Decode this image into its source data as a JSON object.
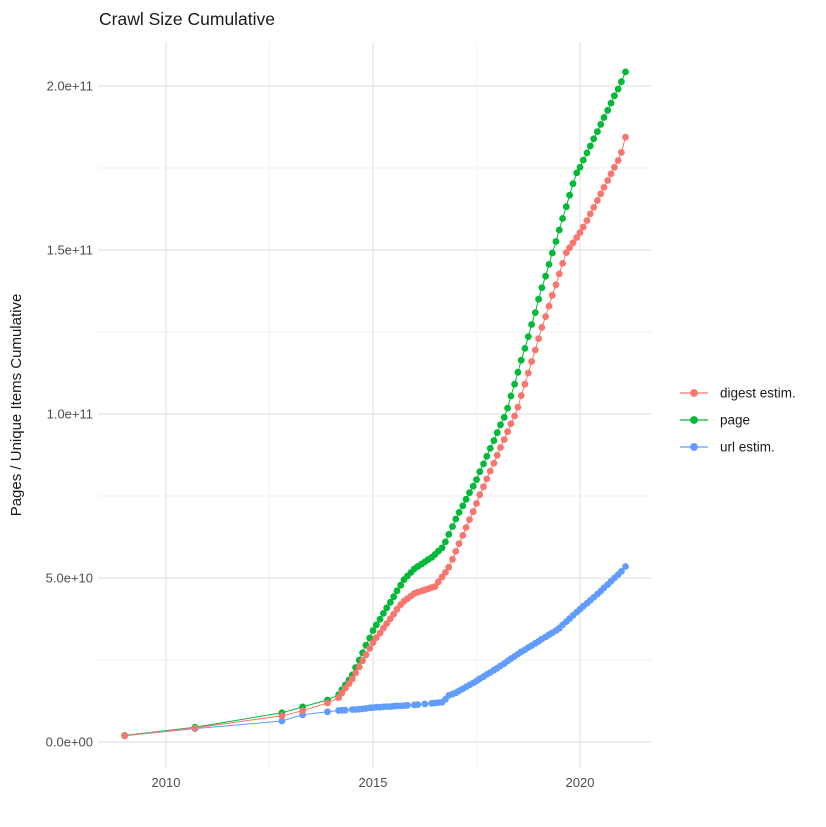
{
  "title": "Crawl Size Cumulative",
  "ylabel": "Pages / Unique Items Cumulative",
  "colors": {
    "digest": "#F8766D",
    "page": "#00BA38",
    "url": "#619CFF",
    "grid_major": "#E4E4E4",
    "grid_minor": "#F2F2F2",
    "tick_text": "#4d4d4d",
    "title_text": "#1a1a1a",
    "background": "#ffffff"
  },
  "chart_data": {
    "type": "line",
    "title": "Crawl Size Cumulative",
    "xlabel": "",
    "ylabel": "Pages / Unique Items Cumulative",
    "value_unit": "1e9 (values below are billions of pages / unique items)",
    "grid": true,
    "legend_position": "right",
    "xlim": [
      2008.4,
      2021.7
    ],
    "ylim_e9": [
      -8,
      213
    ],
    "x_ticks": [
      {
        "label": "2010",
        "year": 2010
      },
      {
        "label": "2015",
        "year": 2015
      },
      {
        "label": "2020",
        "year": 2020
      }
    ],
    "y_ticks": [
      {
        "label": "0.0e+00",
        "value": 0
      },
      {
        "label": "5.0e+10",
        "value": 50
      },
      {
        "label": "1.0e+11",
        "value": 100
      },
      {
        "label": "1.5e+11",
        "value": 150
      },
      {
        "label": "2.0e+11",
        "value": 200
      }
    ],
    "x_minor": [
      2012.5,
      2017.5
    ],
    "y_minor": [
      25,
      75,
      125,
      175
    ],
    "series": [
      {
        "name": "digest estim.",
        "color": "#F8766D",
        "points": [
          [
            2009.0,
            1.9
          ],
          [
            2010.7,
            4.3
          ],
          [
            2012.8,
            8.0
          ],
          [
            2013.3,
            9.5
          ],
          [
            2013.9,
            11.9
          ],
          [
            2014.17,
            13.5
          ],
          [
            2014.25,
            14.9
          ],
          [
            2014.33,
            16.4
          ],
          [
            2014.42,
            17.8
          ],
          [
            2014.5,
            19.2
          ],
          [
            2014.58,
            21.1
          ],
          [
            2014.67,
            22.9
          ],
          [
            2014.75,
            24.8
          ],
          [
            2014.83,
            26.6
          ],
          [
            2014.92,
            28.5
          ],
          [
            2015.0,
            30.3
          ],
          [
            2015.08,
            31.8
          ],
          [
            2015.17,
            33.2
          ],
          [
            2015.25,
            34.7
          ],
          [
            2015.33,
            36.1
          ],
          [
            2015.42,
            37.6
          ],
          [
            2015.5,
            39.0
          ],
          [
            2015.58,
            40.5
          ],
          [
            2015.67,
            41.9
          ],
          [
            2015.75,
            42.9
          ],
          [
            2015.83,
            43.7
          ],
          [
            2015.92,
            44.5
          ],
          [
            2016.0,
            45.3
          ],
          [
            2016.08,
            45.7
          ],
          [
            2016.17,
            46.0
          ],
          [
            2016.25,
            46.4
          ],
          [
            2016.33,
            46.7
          ],
          [
            2016.42,
            47.1
          ],
          [
            2016.5,
            47.4
          ],
          [
            2016.58,
            48.8
          ],
          [
            2016.67,
            50.3
          ],
          [
            2016.75,
            51.7
          ],
          [
            2016.83,
            53.3
          ],
          [
            2016.92,
            55.7
          ],
          [
            2017.0,
            58.1
          ],
          [
            2017.08,
            60.5
          ],
          [
            2017.17,
            63.0
          ],
          [
            2017.25,
            65.4
          ],
          [
            2017.33,
            67.8
          ],
          [
            2017.42,
            70.2
          ],
          [
            2017.5,
            72.7
          ],
          [
            2017.58,
            75.4
          ],
          [
            2017.67,
            77.8
          ],
          [
            2017.75,
            80.2
          ],
          [
            2017.83,
            82.6
          ],
          [
            2017.92,
            85.0
          ],
          [
            2018.0,
            87.4
          ],
          [
            2018.08,
            89.8
          ],
          [
            2018.17,
            92.2
          ],
          [
            2018.25,
            94.6
          ],
          [
            2018.33,
            97.0
          ],
          [
            2018.42,
            99.4
          ],
          [
            2018.5,
            102.1
          ],
          [
            2018.58,
            105.6
          ],
          [
            2018.67,
            109.1
          ],
          [
            2018.75,
            112.5
          ],
          [
            2018.83,
            116.0
          ],
          [
            2018.92,
            119.5
          ],
          [
            2019.0,
            123.0
          ],
          [
            2019.08,
            126.4
          ],
          [
            2019.17,
            129.7
          ],
          [
            2019.25,
            132.9
          ],
          [
            2019.33,
            136.2
          ],
          [
            2019.42,
            139.4
          ],
          [
            2019.5,
            142.7
          ],
          [
            2019.58,
            145.9
          ],
          [
            2019.67,
            149.2
          ],
          [
            2019.75,
            150.7
          ],
          [
            2019.83,
            152.2
          ],
          [
            2019.92,
            153.8
          ],
          [
            2020.0,
            155.3
          ],
          [
            2020.08,
            157.0
          ],
          [
            2020.17,
            159.0
          ],
          [
            2020.25,
            161.0
          ],
          [
            2020.33,
            163.0
          ],
          [
            2020.42,
            165.1
          ],
          [
            2020.5,
            167.1
          ],
          [
            2020.58,
            169.1
          ],
          [
            2020.67,
            171.2
          ],
          [
            2020.75,
            173.2
          ],
          [
            2020.83,
            175.2
          ],
          [
            2020.92,
            177.3
          ],
          [
            2021.0,
            179.8
          ],
          [
            2021.1,
            184.4
          ]
        ]
      },
      {
        "name": "page",
        "color": "#00BA38",
        "points": [
          [
            2009.0,
            2.0
          ],
          [
            2010.7,
            4.5
          ],
          [
            2012.8,
            8.9
          ],
          [
            2013.3,
            10.7
          ],
          [
            2013.9,
            12.8
          ],
          [
            2014.17,
            14.4
          ],
          [
            2014.25,
            15.9
          ],
          [
            2014.33,
            17.4
          ],
          [
            2014.42,
            18.9
          ],
          [
            2014.5,
            20.5
          ],
          [
            2014.58,
            22.7
          ],
          [
            2014.67,
            25.0
          ],
          [
            2014.75,
            27.2
          ],
          [
            2014.83,
            29.5
          ],
          [
            2014.92,
            31.7
          ],
          [
            2015.0,
            34.0
          ],
          [
            2015.08,
            35.7
          ],
          [
            2015.17,
            37.4
          ],
          [
            2015.25,
            39.2
          ],
          [
            2015.33,
            40.9
          ],
          [
            2015.42,
            42.6
          ],
          [
            2015.5,
            44.3
          ],
          [
            2015.58,
            46.1
          ],
          [
            2015.67,
            47.8
          ],
          [
            2015.75,
            49.5
          ],
          [
            2015.83,
            50.6
          ],
          [
            2015.92,
            51.7
          ],
          [
            2016.0,
            52.8
          ],
          [
            2016.08,
            53.5
          ],
          [
            2016.17,
            54.2
          ],
          [
            2016.25,
            54.9
          ],
          [
            2016.33,
            55.6
          ],
          [
            2016.42,
            56.3
          ],
          [
            2016.5,
            57.2
          ],
          [
            2016.58,
            58.2
          ],
          [
            2016.67,
            59.2
          ],
          [
            2016.75,
            61.0
          ],
          [
            2016.83,
            63.3
          ],
          [
            2016.92,
            65.7
          ],
          [
            2017.0,
            68.0
          ],
          [
            2017.08,
            70.0
          ],
          [
            2017.17,
            72.0
          ],
          [
            2017.25,
            74.0
          ],
          [
            2017.33,
            76.0
          ],
          [
            2017.42,
            78.0
          ],
          [
            2017.5,
            80.0
          ],
          [
            2017.58,
            82.4
          ],
          [
            2017.67,
            84.8
          ],
          [
            2017.75,
            87.1
          ],
          [
            2017.83,
            89.5
          ],
          [
            2017.92,
            91.9
          ],
          [
            2018.0,
            94.3
          ],
          [
            2018.08,
            96.7
          ],
          [
            2018.17,
            99.0
          ],
          [
            2018.25,
            101.8
          ],
          [
            2018.33,
            105.5
          ],
          [
            2018.42,
            109.1
          ],
          [
            2018.5,
            112.7
          ],
          [
            2018.58,
            116.4
          ],
          [
            2018.67,
            120.0
          ],
          [
            2018.75,
            123.6
          ],
          [
            2018.83,
            127.3
          ],
          [
            2018.92,
            130.9
          ],
          [
            2019.0,
            135.0
          ],
          [
            2019.08,
            138.5
          ],
          [
            2019.17,
            142.0
          ],
          [
            2019.25,
            145.6
          ],
          [
            2019.33,
            149.1
          ],
          [
            2019.42,
            152.6
          ],
          [
            2019.5,
            156.1
          ],
          [
            2019.58,
            159.6
          ],
          [
            2019.67,
            163.2
          ],
          [
            2019.75,
            166.7
          ],
          [
            2019.83,
            170.2
          ],
          [
            2019.92,
            173.5
          ],
          [
            2020.0,
            175.2
          ],
          [
            2020.08,
            177.4
          ],
          [
            2020.17,
            179.6
          ],
          [
            2020.25,
            181.7
          ],
          [
            2020.33,
            183.9
          ],
          [
            2020.42,
            186.1
          ],
          [
            2020.5,
            188.3
          ],
          [
            2020.58,
            190.4
          ],
          [
            2020.67,
            192.6
          ],
          [
            2020.75,
            194.8
          ],
          [
            2020.83,
            197.0
          ],
          [
            2020.92,
            199.1
          ],
          [
            2021.0,
            201.3
          ],
          [
            2021.1,
            204.3
          ]
        ]
      },
      {
        "name": "url estim.",
        "color": "#619CFF",
        "points": [
          [
            2009.0,
            1.9
          ],
          [
            2010.7,
            4.1
          ],
          [
            2012.8,
            6.4
          ],
          [
            2013.3,
            8.3
          ],
          [
            2013.9,
            9.2
          ],
          [
            2014.17,
            9.6
          ],
          [
            2014.25,
            9.7
          ],
          [
            2014.33,
            9.7
          ],
          [
            2014.5,
            9.9
          ],
          [
            2014.58,
            9.9
          ],
          [
            2014.67,
            10.0
          ],
          [
            2014.75,
            10.1
          ],
          [
            2014.83,
            10.2
          ],
          [
            2014.92,
            10.4
          ],
          [
            2015.0,
            10.5
          ],
          [
            2015.08,
            10.6
          ],
          [
            2015.17,
            10.6
          ],
          [
            2015.25,
            10.7
          ],
          [
            2015.33,
            10.8
          ],
          [
            2015.42,
            10.8
          ],
          [
            2015.5,
            10.9
          ],
          [
            2015.58,
            11.0
          ],
          [
            2015.67,
            11.0
          ],
          [
            2015.75,
            11.1
          ],
          [
            2015.83,
            11.2
          ],
          [
            2016.0,
            11.3
          ],
          [
            2016.08,
            11.4
          ],
          [
            2016.25,
            11.6
          ],
          [
            2016.42,
            11.8
          ],
          [
            2016.5,
            11.9
          ],
          [
            2016.58,
            12.0
          ],
          [
            2016.67,
            12.1
          ],
          [
            2016.75,
            13.0
          ],
          [
            2016.83,
            14.2
          ],
          [
            2016.92,
            14.6
          ],
          [
            2017.0,
            15.0
          ],
          [
            2017.08,
            15.6
          ],
          [
            2017.17,
            16.2
          ],
          [
            2017.25,
            16.8
          ],
          [
            2017.33,
            17.4
          ],
          [
            2017.42,
            18.0
          ],
          [
            2017.5,
            18.6
          ],
          [
            2017.58,
            19.3
          ],
          [
            2017.67,
            19.9
          ],
          [
            2017.75,
            20.6
          ],
          [
            2017.83,
            21.2
          ],
          [
            2017.92,
            21.9
          ],
          [
            2018.0,
            22.5
          ],
          [
            2018.08,
            23.2
          ],
          [
            2018.17,
            23.9
          ],
          [
            2018.25,
            24.7
          ],
          [
            2018.33,
            25.4
          ],
          [
            2018.42,
            26.1
          ],
          [
            2018.5,
            26.8
          ],
          [
            2018.58,
            27.5
          ],
          [
            2018.67,
            28.1
          ],
          [
            2018.75,
            28.8
          ],
          [
            2018.83,
            29.4
          ],
          [
            2018.92,
            30.1
          ],
          [
            2019.0,
            30.7
          ],
          [
            2019.08,
            31.4
          ],
          [
            2019.17,
            32.0
          ],
          [
            2019.25,
            32.7
          ],
          [
            2019.33,
            33.3
          ],
          [
            2019.42,
            34.0
          ],
          [
            2019.5,
            34.7
          ],
          [
            2019.58,
            35.7
          ],
          [
            2019.67,
            36.7
          ],
          [
            2019.75,
            37.6
          ],
          [
            2019.83,
            38.6
          ],
          [
            2019.92,
            39.6
          ],
          [
            2020.0,
            40.5
          ],
          [
            2020.08,
            41.4
          ],
          [
            2020.17,
            42.3
          ],
          [
            2020.25,
            43.2
          ],
          [
            2020.33,
            44.1
          ],
          [
            2020.42,
            45.1
          ],
          [
            2020.5,
            46.0
          ],
          [
            2020.58,
            47.0
          ],
          [
            2020.67,
            48.0
          ],
          [
            2020.75,
            49.0
          ],
          [
            2020.83,
            50.0
          ],
          [
            2020.92,
            51.0
          ],
          [
            2021.0,
            52.0
          ],
          [
            2021.1,
            53.5
          ]
        ]
      }
    ]
  }
}
